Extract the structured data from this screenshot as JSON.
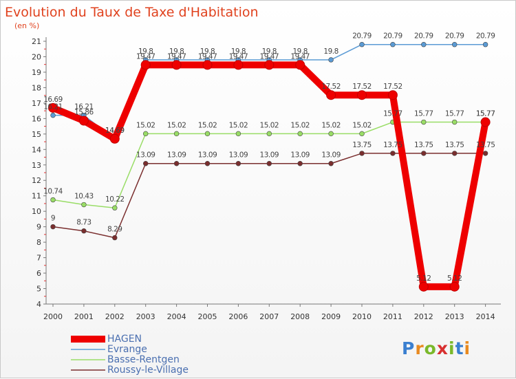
{
  "chart_data": {
    "type": "line",
    "title": "Evolution du Taux de Taxe d'Habitation",
    "subtitle": "(en %)",
    "xlabel": "",
    "ylabel": "",
    "categories": [
      "2000",
      "2001",
      "2002",
      "2003",
      "2004",
      "2005",
      "2006",
      "2007",
      "2008",
      "2009",
      "2010",
      "2011",
      "2012",
      "2013",
      "2014"
    ],
    "yticks": [
      "4",
      "5",
      "6",
      "7",
      "8",
      "9",
      "10",
      "11",
      "12",
      "13",
      "14",
      "15",
      "16",
      "17",
      "18",
      "19",
      "20",
      "21"
    ],
    "ylim": [
      4,
      21
    ],
    "grid": false,
    "legend_position": "bottom-left",
    "series": [
      {
        "name": "HAGEN",
        "color": "#ee0000",
        "values": [
          16.69,
          15.86,
          14.69,
          19.47,
          19.47,
          19.47,
          19.47,
          19.47,
          19.47,
          17.52,
          17.52,
          17.52,
          5.12,
          5.12,
          15.77
        ],
        "labels": [
          "16.69",
          "15.86",
          "14.69",
          "19.47",
          "19.47",
          "19.47",
          "19.47",
          "19.47",
          "19.47",
          "17.52",
          "17.52",
          "17.52",
          "5.12",
          "5.12",
          "15.77"
        ]
      },
      {
        "name": "Evrange",
        "color": "#5b9bd5",
        "values": [
          16.21,
          16.21,
          14.69,
          19.8,
          19.8,
          19.8,
          19.8,
          19.8,
          19.8,
          19.8,
          20.79,
          20.79,
          20.79,
          20.79,
          20.79
        ],
        "labels": [
          "16.21",
          "16.21",
          "14.69",
          "19.8",
          "19.8",
          "19.8",
          "19.8",
          "19.8",
          "19.8",
          "19.8",
          "20.79",
          "20.79",
          "20.79",
          "20.79",
          "20.79"
        ]
      },
      {
        "name": "Basse-Rentgen",
        "color": "#99dd66",
        "values": [
          10.74,
          10.43,
          10.22,
          15.02,
          15.02,
          15.02,
          15.02,
          15.02,
          15.02,
          15.02,
          15.02,
          15.77,
          15.77,
          15.77,
          15.77
        ],
        "labels": [
          "10.74",
          "10.43",
          "10.22",
          "15.02",
          "15.02",
          "15.02",
          "15.02",
          "15.02",
          "15.02",
          "15.02",
          "15.02",
          "15.77",
          "15.77",
          "15.77",
          "15.77"
        ]
      },
      {
        "name": "Roussy-le-Village",
        "color": "#7a2e2e",
        "values": [
          9,
          8.73,
          8.29,
          13.09,
          13.09,
          13.09,
          13.09,
          13.09,
          13.09,
          13.09,
          13.75,
          13.75,
          13.75,
          13.75,
          13.75
        ],
        "labels": [
          "9",
          "8.73",
          "8.29",
          "13.09",
          "13.09",
          "13.09",
          "13.09",
          "13.09",
          "13.09",
          "13.09",
          "13.75",
          "13.75",
          "13.75",
          "13.75",
          "13.75"
        ]
      }
    ]
  },
  "brand": {
    "letters": [
      "P",
      "r",
      "o",
      "x",
      "i",
      "t",
      "i"
    ],
    "colors": [
      "#3a7fd0",
      "#e88a20",
      "#7ab82a",
      "#d83030",
      "#7ab82a",
      "#3a7fd0",
      "#e88a20"
    ]
  }
}
